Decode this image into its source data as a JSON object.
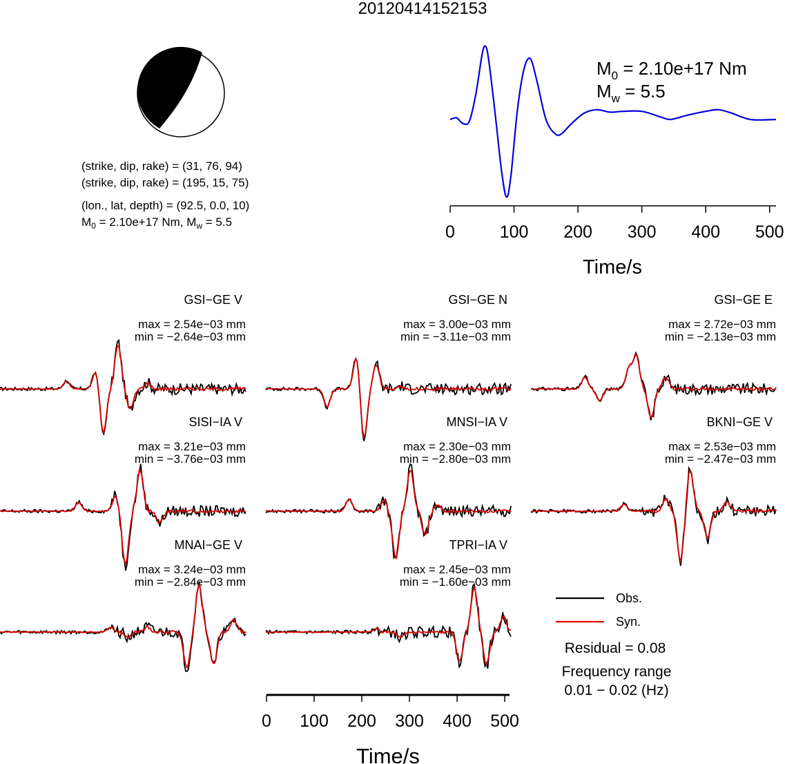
{
  "title": "20120414152153",
  "mechanism": {
    "plane1": "(strike, dip, rake) = (31, 76, 94)",
    "plane2": "(strike, dip, rake) = (195, 15, 75)",
    "location": "(lon., lat, depth) = (92.5, 0.0, 10)",
    "moment_line": {
      "m0_label": "M",
      "m0_sub": "0",
      "m0_value": " = 2.10e+17 Nm, M",
      "mw_sub": "w",
      "mw_value": " = 5.5"
    }
  },
  "stf": {
    "m0_label": "M",
    "m0_sub": "0",
    "m0_value": " = 2.10e+17 Nm",
    "mw_label": "M",
    "mw_sub": "w",
    "mw_value": " = 5.5",
    "xlabel": "Time/s",
    "xticks": [
      0,
      100,
      200,
      300,
      400,
      500
    ],
    "color": "#0000dd"
  },
  "legend": {
    "obs": "Obs.",
    "syn": "Syn.",
    "obs_color": "#000000",
    "syn_color": "#dd0000",
    "residual": "Residual = 0.08",
    "freq_title": "Frequency range",
    "freq_value": "0.01 − 0.02 (Hz)"
  },
  "waveform_axis": {
    "xlabel": "Time/s",
    "xticks": [
      0,
      100,
      200,
      300,
      400,
      500
    ]
  },
  "stations": [
    {
      "name": "GSI−GE V",
      "max": "max = 2.54e−03 mm",
      "min": "min = −2.64e−03 mm"
    },
    {
      "name": "GSI−GE N",
      "max": "max = 3.00e−03 mm",
      "min": "min = −3.11e−03 mm"
    },
    {
      "name": "GSI−GE E",
      "max": "max = 2.72e−03 mm",
      "min": "min = −2.13e−03 mm"
    },
    {
      "name": "SISI−IA V",
      "max": "max = 3.21e−03 mm",
      "min": "min = −3.76e−03 mm"
    },
    {
      "name": "MNSI−IA V",
      "max": "max = 2.30e−03 mm",
      "min": "min = −2.80e−03 mm"
    },
    {
      "name": "BKNI−GE V",
      "max": "max = 2.53e−03 mm",
      "min": "min = −2.47e−03 mm"
    },
    {
      "name": "MNAI−GE V",
      "max": "max = 3.24e−03 mm",
      "min": "min = −2.84e−03 mm"
    },
    {
      "name": "TPRI−IA V",
      "max": "max = 2.45e−03 mm",
      "min": "min = −1.60e−03 mm"
    }
  ],
  "chart_data": [
    {
      "type": "line",
      "title": "",
      "xlabel": "Time/s",
      "ylabel": "",
      "xlim": [
        0,
        510
      ],
      "series": [
        {
          "color": "#0000dd",
          "x": [
            0,
            10,
            20,
            30,
            40,
            50,
            55,
            60,
            70,
            80,
            88,
            95,
            105,
            115,
            125,
            135,
            150,
            165,
            175,
            190,
            210,
            230,
            250,
            270,
            300,
            330,
            345,
            370,
            400,
            420,
            440,
            470,
            510
          ],
          "y": [
            0,
            0.02,
            -0.05,
            -0.02,
            0.3,
            0.8,
            0.9,
            0.75,
            0.1,
            -0.6,
            -0.95,
            -0.7,
            0.1,
            0.6,
            0.75,
            0.5,
            0.0,
            -0.18,
            -0.17,
            -0.05,
            0.08,
            0.12,
            0.09,
            0.1,
            0.1,
            0.03,
            0.0,
            0.05,
            0.1,
            0.12,
            0.08,
            0.0,
            0.0
          ]
        }
      ]
    },
    {
      "type": "line",
      "title": "",
      "xlabel": "Time/s",
      "ylabel": "",
      "xlim": [
        0,
        510
      ],
      "series": [
        {
          "name": "Obs.",
          "color": "#000000"
        },
        {
          "name": "Syn.",
          "color": "#dd0000"
        }
      ]
    }
  ]
}
